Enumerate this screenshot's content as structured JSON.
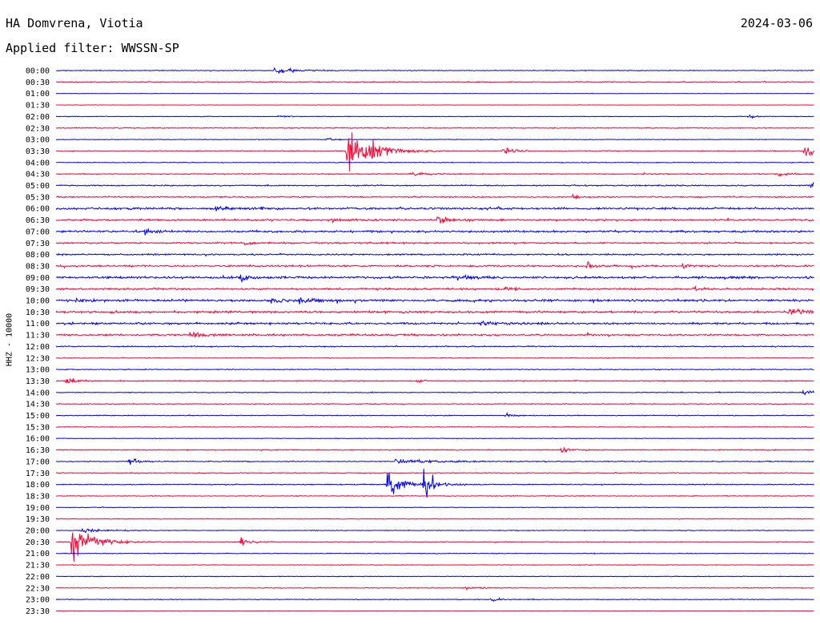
{
  "header": {
    "station": "HA Domvrena, Viotia",
    "date": "2024-03-06",
    "filter": "Applied filter: WWSSN-SP",
    "channel_label": "HHZ - 10000"
  },
  "colors": {
    "odd_trace": "#0000ff",
    "even_trace": "#ff0033",
    "text": "#000000"
  },
  "chart_data": {
    "type": "line",
    "title": "HA Domvrena, Viotia",
    "subtitle": "Applied filter: WWSSN-SP",
    "date": "2024-03-06",
    "ylabel": "HHZ - 10000",
    "row_labels": [
      "00:00",
      "00:30",
      "01:00",
      "01:30",
      "02:00",
      "02:30",
      "03:00",
      "03:30",
      "04:00",
      "04:30",
      "05:00",
      "05:30",
      "06:00",
      "06:30",
      "07:00",
      "07:30",
      "08:00",
      "08:30",
      "09:00",
      "09:30",
      "10:00",
      "10:30",
      "11:00",
      "11:30",
      "12:00",
      "12:30",
      "13:00",
      "13:30",
      "14:00",
      "14:30",
      "15:00",
      "15:30",
      "16:00",
      "16:30",
      "17:00",
      "17:30",
      "18:00",
      "18:30",
      "19:00",
      "19:30",
      "20:00",
      "20:30",
      "21:00",
      "21:30",
      "22:00",
      "22:30",
      "23:00",
      "23:30"
    ],
    "row_minutes": 30,
    "trace_colors": [
      "#0000ff",
      "#ff0033"
    ],
    "noise_levels": [
      0.6,
      0.8,
      0.3,
      0.3,
      0.5,
      0.7,
      0.5,
      0.7,
      0.6,
      0.8,
      1.0,
      1.0,
      1.6,
      1.4,
      1.6,
      1.2,
      1.2,
      1.4,
      1.8,
      1.4,
      1.8,
      1.6,
      1.6,
      1.4,
      0.9,
      0.6,
      0.7,
      0.8,
      0.7,
      0.7,
      0.7,
      0.6,
      0.5,
      0.8,
      0.7,
      0.7,
      0.8,
      0.6,
      0.5,
      0.5,
      0.6,
      0.6,
      0.6,
      0.5,
      0.5,
      0.6,
      0.6,
      0.4
    ],
    "events": [
      {
        "row": 0,
        "minute": 8.6,
        "amplitude": 6,
        "duration": 1.6
      },
      {
        "row": 4,
        "minute": 8.8,
        "amplitude": 3,
        "duration": 0.5
      },
      {
        "row": 4,
        "minute": 27.4,
        "amplitude": 3,
        "duration": 0.5
      },
      {
        "row": 6,
        "minute": 10.7,
        "amplitude": 3,
        "duration": 0.6
      },
      {
        "row": 7,
        "minute": 11.5,
        "amplitude": 40,
        "duration": 1.8
      },
      {
        "row": 7,
        "minute": 12.5,
        "amplitude": 10,
        "duration": 1.0
      },
      {
        "row": 7,
        "minute": 17.7,
        "amplitude": 9,
        "duration": 0.8
      },
      {
        "row": 7,
        "minute": 29.6,
        "amplitude": 13,
        "duration": 1.0
      },
      {
        "row": 9,
        "minute": 14.0,
        "amplitude": 4,
        "duration": 1.2
      },
      {
        "row": 9,
        "minute": 28.6,
        "amplitude": 3,
        "duration": 1.2
      },
      {
        "row": 10,
        "minute": 29.8,
        "amplitude": 5,
        "duration": 1.2
      },
      {
        "row": 11,
        "minute": 20.4,
        "amplitude": 4,
        "duration": 0.8
      },
      {
        "row": 12,
        "minute": 6.3,
        "amplitude": 6,
        "duration": 0.8
      },
      {
        "row": 12,
        "minute": 8.1,
        "amplitude": 5,
        "duration": 0.5
      },
      {
        "row": 13,
        "minute": 10.8,
        "amplitude": 4,
        "duration": 1.4
      },
      {
        "row": 13,
        "minute": 15.1,
        "amplitude": 7,
        "duration": 1.2
      },
      {
        "row": 14,
        "minute": 3.5,
        "amplitude": 4,
        "duration": 1.2
      },
      {
        "row": 15,
        "minute": 7.5,
        "amplitude": 5,
        "duration": 0.5
      },
      {
        "row": 17,
        "minute": 21.0,
        "amplitude": 6,
        "duration": 0.5
      },
      {
        "row": 17,
        "minute": 24.8,
        "amplitude": 5,
        "duration": 0.5
      },
      {
        "row": 18,
        "minute": 7.3,
        "amplitude": 8,
        "duration": 0.6
      },
      {
        "row": 18,
        "minute": 15.9,
        "amplitude": 6,
        "duration": 0.8
      },
      {
        "row": 19,
        "minute": 17.7,
        "amplitude": 4,
        "duration": 0.8
      },
      {
        "row": 19,
        "minute": 25.2,
        "amplitude": 4,
        "duration": 0.5
      },
      {
        "row": 20,
        "minute": 0.8,
        "amplitude": 5,
        "duration": 0.6
      },
      {
        "row": 20,
        "minute": 8.5,
        "amplitude": 5,
        "duration": 0.8
      },
      {
        "row": 20,
        "minute": 9.6,
        "amplitude": 6,
        "duration": 1.0
      },
      {
        "row": 21,
        "minute": 29.0,
        "amplitude": 5,
        "duration": 2.2
      },
      {
        "row": 22,
        "minute": 16.6,
        "amplitude": 5,
        "duration": 1.2
      },
      {
        "row": 23,
        "minute": 5.3,
        "amplitude": 4,
        "duration": 1.4
      },
      {
        "row": 27,
        "minute": 0.4,
        "amplitude": 7,
        "duration": 0.8
      },
      {
        "row": 27,
        "minute": 14.3,
        "amplitude": 5,
        "duration": 0.5
      },
      {
        "row": 28,
        "minute": 29.5,
        "amplitude": 5,
        "duration": 1.0
      },
      {
        "row": 30,
        "minute": 17.8,
        "amplitude": 5,
        "duration": 0.6
      },
      {
        "row": 33,
        "minute": 20.0,
        "amplitude": 4,
        "duration": 1.0
      },
      {
        "row": 34,
        "minute": 2.9,
        "amplitude": 7,
        "duration": 0.7
      },
      {
        "row": 34,
        "minute": 13.4,
        "amplitude": 4,
        "duration": 3.8
      },
      {
        "row": 36,
        "minute": 13.1,
        "amplitude": 28,
        "duration": 0.9
      },
      {
        "row": 36,
        "minute": 14.5,
        "amplitude": 36,
        "duration": 0.9
      },
      {
        "row": 40,
        "minute": 1.0,
        "amplitude": 4,
        "duration": 1.6
      },
      {
        "row": 41,
        "minute": 0.6,
        "amplitude": 36,
        "duration": 1.5
      },
      {
        "row": 41,
        "minute": 7.3,
        "amplitude": 9,
        "duration": 0.7
      },
      {
        "row": 45,
        "minute": 16.2,
        "amplitude": 3,
        "duration": 1.0
      },
      {
        "row": 46,
        "minute": 17.2,
        "amplitude": 4,
        "duration": 0.6
      }
    ]
  }
}
